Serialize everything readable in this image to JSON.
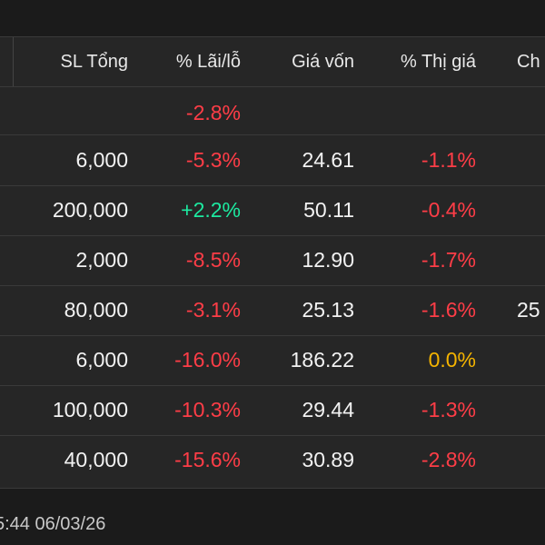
{
  "table": {
    "headers": {
      "qty": "SL Tổng",
      "pl": "% Lãi/lỗ",
      "cost": "Giá vốn",
      "market": "% Thị giá",
      "ch": "Ch"
    },
    "total_row": {
      "pl": "-2.8%"
    },
    "rows": [
      {
        "qty": "6,000",
        "pl": "-5.3%",
        "cost": "24.61",
        "market": "-1.1%",
        "ch": ""
      },
      {
        "qty": "200,000",
        "pl": "+2.2%",
        "cost": "50.11",
        "market": "-0.4%",
        "ch": ""
      },
      {
        "qty": "2,000",
        "pl": "-8.5%",
        "cost": "12.90",
        "market": "-1.7%",
        "ch": ""
      },
      {
        "qty": "80,000",
        "pl": "-3.1%",
        "cost": "25.13",
        "market": "-1.6%",
        "ch": "25"
      },
      {
        "qty": "6,000",
        "pl": "-16.0%",
        "cost": "186.22",
        "market": "0.0%",
        "ch": "",
        "warning": "!"
      },
      {
        "qty": "100,000",
        "pl": "-10.3%",
        "cost": "29.44",
        "market": "-1.3%",
        "ch": ""
      },
      {
        "qty": "40,000",
        "pl": "-15.6%",
        "cost": "30.89",
        "market": "-2.8%",
        "ch": ""
      }
    ]
  },
  "footer": {
    "timestamp": "5:44 06/03/26"
  },
  "colors": {
    "background": "#1b1b1b",
    "panel": "#262626",
    "loss": "#ff3d47",
    "gain": "#1de9a0",
    "neutral": "#f5b400",
    "text": "#f2f2f2"
  }
}
